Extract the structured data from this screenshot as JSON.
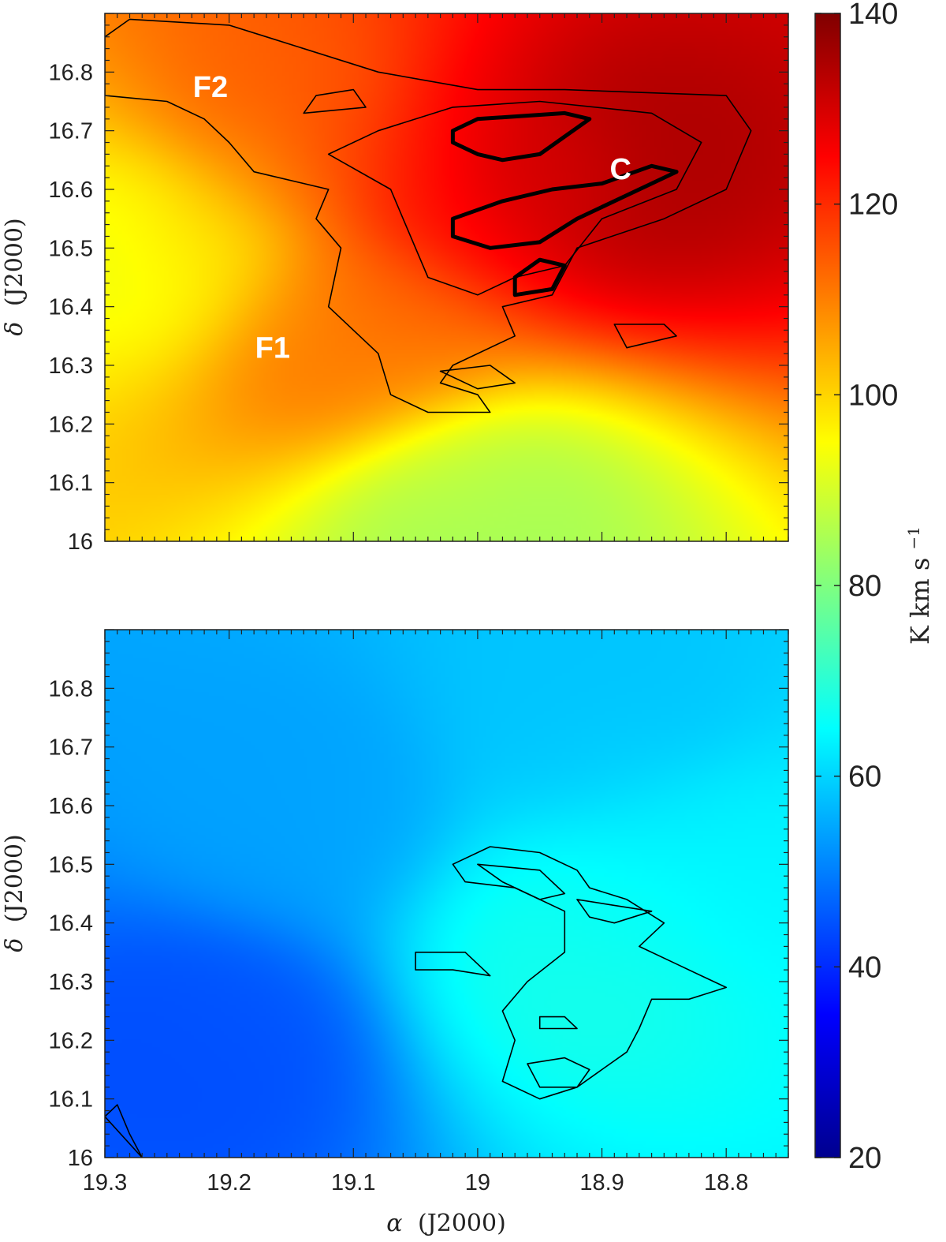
{
  "chart_data": [
    {
      "type": "heatmap",
      "panel": "top",
      "xlim": [
        19.3,
        18.75
      ],
      "ylim": [
        16.0,
        16.9
      ],
      "x_ticks": [
        "19.3",
        "19.2",
        "19.1",
        "19",
        "18.9",
        "18.8"
      ],
      "y_ticks": [
        "16",
        "16.1",
        "16.2",
        "16.3",
        "16.4",
        "16.5",
        "16.6",
        "16.7",
        "16.8"
      ],
      "x_tick_values": [
        19.3,
        19.2,
        19.1,
        19.0,
        18.9,
        18.8
      ],
      "y_tick_values": [
        16.0,
        16.1,
        16.2,
        16.3,
        16.4,
        16.5,
        16.6,
        16.7,
        16.8
      ],
      "ylabel_symbol": "δ",
      "ylabel_text": "(J2000)",
      "xlabel_symbol": "",
      "xlabel_text": "",
      "annotations": [
        {
          "text": "F2",
          "x": 19.215,
          "y": 16.775
        },
        {
          "text": "F1",
          "x": 19.165,
          "y": 16.33
        },
        {
          "text": "C",
          "x": 18.885,
          "y": 16.635
        }
      ],
      "field_peaks": [
        {
          "x": 18.9,
          "y": 16.64,
          "value": 136
        },
        {
          "x": 19.0,
          "y": 16.62,
          "value": 126
        },
        {
          "x": 19.15,
          "y": 16.7,
          "value": 114
        },
        {
          "x": 19.1,
          "y": 16.35,
          "value": 112
        },
        {
          "x": 19.25,
          "y": 16.5,
          "value": 92
        },
        {
          "x": 19.0,
          "y": 16.05,
          "value": 84
        }
      ],
      "contour_paths": [
        {
          "weight": "thin",
          "points": [
            [
              19.3,
              16.86
            ],
            [
              19.28,
              16.89
            ],
            [
              19.2,
              16.88
            ],
            [
              19.17,
              16.86
            ],
            [
              19.08,
              16.8
            ],
            [
              19.0,
              16.77
            ],
            [
              18.93,
              16.77
            ],
            [
              18.8,
              16.76
            ],
            [
              18.78,
              16.7
            ],
            [
              18.8,
              16.6
            ],
            [
              18.85,
              16.55
            ],
            [
              18.92,
              16.5
            ],
            [
              18.94,
              16.42
            ],
            [
              18.98,
              16.4
            ],
            [
              18.97,
              16.35
            ],
            [
              19.02,
              16.3
            ],
            [
              19.03,
              16.27
            ],
            [
              19.0,
              16.25
            ],
            [
              18.99,
              16.22
            ],
            [
              19.04,
              16.22
            ],
            [
              19.07,
              16.25
            ],
            [
              19.08,
              16.32
            ],
            [
              19.12,
              16.4
            ],
            [
              19.11,
              16.5
            ],
            [
              19.13,
              16.55
            ],
            [
              19.12,
              16.6
            ],
            [
              19.18,
              16.63
            ],
            [
              19.2,
              16.68
            ],
            [
              19.22,
              16.72
            ],
            [
              19.25,
              16.75
            ],
            [
              19.3,
              16.76
            ]
          ]
        },
        {
          "weight": "thin",
          "points": [
            [
              19.08,
              16.7
            ],
            [
              19.02,
              16.74
            ],
            [
              18.95,
              16.75
            ],
            [
              18.86,
              16.73
            ],
            [
              18.82,
              16.68
            ],
            [
              18.84,
              16.6
            ],
            [
              18.9,
              16.55
            ],
            [
              18.93,
              16.47
            ],
            [
              18.97,
              16.45
            ],
            [
              19.0,
              16.42
            ],
            [
              19.04,
              16.45
            ],
            [
              19.06,
              16.55
            ],
            [
              19.07,
              16.6
            ],
            [
              19.12,
              16.66
            ]
          ]
        },
        {
          "weight": "thin",
          "points": [
            [
              19.03,
              16.29
            ],
            [
              18.99,
              16.3
            ],
            [
              18.97,
              16.27
            ],
            [
              19.0,
              16.26
            ]
          ]
        },
        {
          "weight": "thin",
          "points": [
            [
              19.14,
              16.73
            ],
            [
              19.13,
              16.76
            ],
            [
              19.1,
              16.77
            ],
            [
              19.09,
              16.74
            ]
          ]
        },
        {
          "weight": "thin",
          "points": [
            [
              18.89,
              16.37
            ],
            [
              18.85,
              16.37
            ],
            [
              18.84,
              16.35
            ],
            [
              18.88,
              16.33
            ]
          ]
        },
        {
          "weight": "thick",
          "points": [
            [
              19.02,
              16.7
            ],
            [
              19.0,
              16.72
            ],
            [
              18.93,
              16.73
            ],
            [
              18.91,
              16.72
            ],
            [
              18.93,
              16.69
            ],
            [
              18.95,
              16.66
            ],
            [
              18.98,
              16.65
            ],
            [
              19.0,
              16.66
            ],
            [
              19.02,
              16.68
            ]
          ]
        },
        {
          "weight": "thick",
          "points": [
            [
              19.02,
              16.55
            ],
            [
              18.98,
              16.58
            ],
            [
              18.94,
              16.6
            ],
            [
              18.9,
              16.61
            ],
            [
              18.86,
              16.64
            ],
            [
              18.84,
              16.63
            ],
            [
              18.86,
              16.61
            ],
            [
              18.92,
              16.55
            ],
            [
              18.95,
              16.51
            ],
            [
              18.99,
              16.5
            ],
            [
              19.02,
              16.52
            ]
          ]
        },
        {
          "weight": "thick",
          "points": [
            [
              18.97,
              16.45
            ],
            [
              18.95,
              16.48
            ],
            [
              18.93,
              16.47
            ],
            [
              18.94,
              16.43
            ],
            [
              18.97,
              16.42
            ]
          ]
        }
      ]
    },
    {
      "type": "heatmap",
      "panel": "bottom",
      "xlim": [
        19.3,
        18.75
      ],
      "ylim": [
        16.0,
        16.9
      ],
      "x_ticks": [
        "19.3",
        "19.2",
        "19.1",
        "19",
        "18.9",
        "18.8"
      ],
      "y_ticks": [
        "16",
        "16.1",
        "16.2",
        "16.3",
        "16.4",
        "16.5",
        "16.6",
        "16.7",
        "16.8"
      ],
      "x_tick_values": [
        19.3,
        19.2,
        19.1,
        19.0,
        18.9,
        18.8
      ],
      "y_tick_values": [
        16.0,
        16.1,
        16.2,
        16.3,
        16.4,
        16.5,
        16.6,
        16.7,
        16.8
      ],
      "ylabel_symbol": "δ",
      "ylabel_text": "(J2000)",
      "xlabel_symbol": "α",
      "xlabel_text": "(J2000)",
      "annotations": [],
      "field_peaks": [
        {
          "x": 18.92,
          "y": 16.35,
          "value": 68
        },
        {
          "x": 18.83,
          "y": 16.5,
          "value": 64
        },
        {
          "x": 18.9,
          "y": 16.75,
          "value": 58
        },
        {
          "x": 19.22,
          "y": 16.2,
          "value": 44
        },
        {
          "x": 19.15,
          "y": 16.6,
          "value": 54
        }
      ],
      "contour_paths": [
        {
          "weight": "thin",
          "points": [
            [
              19.02,
              16.5
            ],
            [
              18.99,
              16.53
            ],
            [
              18.95,
              16.52
            ],
            [
              18.92,
              16.49
            ],
            [
              18.91,
              16.46
            ],
            [
              18.88,
              16.44
            ],
            [
              18.85,
              16.4
            ],
            [
              18.87,
              16.36
            ],
            [
              18.84,
              16.33
            ],
            [
              18.82,
              16.31
            ],
            [
              18.8,
              16.29
            ],
            [
              18.83,
              16.27
            ],
            [
              18.86,
              16.27
            ],
            [
              18.87,
              16.22
            ],
            [
              18.88,
              16.18
            ],
            [
              18.9,
              16.15
            ],
            [
              18.92,
              16.12
            ],
            [
              18.95,
              16.1
            ],
            [
              18.98,
              16.13
            ],
            [
              18.97,
              16.2
            ],
            [
              18.98,
              16.25
            ],
            [
              18.96,
              16.3
            ],
            [
              18.93,
              16.35
            ],
            [
              18.93,
              16.42
            ],
            [
              18.97,
              16.46
            ],
            [
              19.01,
              16.47
            ]
          ]
        },
        {
          "weight": "thin",
          "points": [
            [
              19.0,
              16.5
            ],
            [
              18.95,
              16.49
            ],
            [
              18.93,
              16.45
            ],
            [
              18.95,
              16.44
            ],
            [
              18.98,
              16.47
            ]
          ]
        },
        {
          "weight": "thin",
          "points": [
            [
              18.92,
              16.44
            ],
            [
              18.89,
              16.43
            ],
            [
              18.86,
              16.42
            ],
            [
              18.89,
              16.4
            ],
            [
              18.91,
              16.41
            ]
          ]
        },
        {
          "weight": "thin",
          "points": [
            [
              19.05,
              16.35
            ],
            [
              19.01,
              16.35
            ],
            [
              18.99,
              16.31
            ],
            [
              19.02,
              16.32
            ],
            [
              19.05,
              16.32
            ]
          ]
        },
        {
          "weight": "thin",
          "points": [
            [
              18.96,
              16.16
            ],
            [
              18.93,
              16.17
            ],
            [
              18.91,
              16.15
            ],
            [
              18.92,
              16.12
            ],
            [
              18.95,
              16.12
            ]
          ]
        },
        {
          "weight": "thin",
          "points": [
            [
              18.95,
              16.24
            ],
            [
              18.93,
              16.24
            ],
            [
              18.92,
              16.22
            ],
            [
              18.95,
              16.22
            ]
          ]
        },
        {
          "weight": "thin",
          "points": [
            [
              19.3,
              16.07
            ],
            [
              19.29,
              16.09
            ],
            [
              19.28,
              16.04
            ],
            [
              19.27,
              16.0
            ]
          ]
        }
      ]
    }
  ],
  "colorbar": {
    "min": 20,
    "max": 140,
    "ticks": [
      "140",
      "120",
      "100",
      "80",
      "60",
      "40",
      "20"
    ],
    "tick_values": [
      140,
      120,
      100,
      80,
      60,
      40,
      20
    ],
    "colormap": "jet",
    "label": "K km s",
    "label_exponent": "−1"
  },
  "colors": {
    "contour": "#000000",
    "annotation": "#ffffff",
    "frame": "#222222"
  }
}
